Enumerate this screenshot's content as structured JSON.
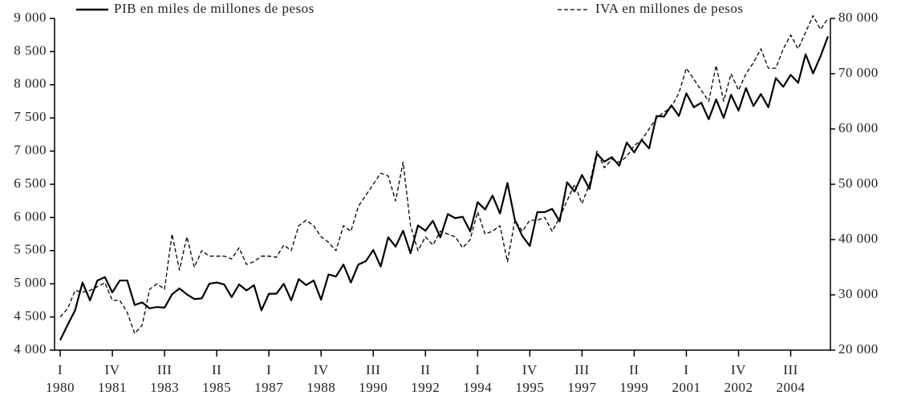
{
  "chart_data": {
    "type": "line",
    "categories": [
      [
        "I",
        "1980"
      ],
      null,
      null,
      null,
      null,
      null,
      null,
      [
        "IV",
        "1981"
      ],
      null,
      null,
      null,
      null,
      null,
      null,
      [
        "III",
        "1983"
      ],
      null,
      null,
      null,
      null,
      null,
      null,
      [
        "II",
        "1985"
      ],
      null,
      null,
      null,
      null,
      null,
      null,
      [
        "I",
        "1987"
      ],
      null,
      null,
      null,
      null,
      null,
      null,
      [
        "IV",
        "1988"
      ],
      null,
      null,
      null,
      null,
      null,
      null,
      [
        "III",
        "1990"
      ],
      null,
      null,
      null,
      null,
      null,
      null,
      [
        "II",
        "1992"
      ],
      null,
      null,
      null,
      null,
      null,
      null,
      [
        "I",
        "1994"
      ],
      null,
      null,
      null,
      null,
      null,
      null,
      [
        "IV",
        "1995"
      ],
      null,
      null,
      null,
      null,
      null,
      null,
      [
        "III",
        "1997"
      ],
      null,
      null,
      null,
      null,
      null,
      null,
      [
        "II",
        "1999"
      ],
      null,
      null,
      null,
      null,
      null,
      null,
      [
        "I",
        "2001"
      ],
      null,
      null,
      null,
      null,
      null,
      null,
      [
        "IV",
        "2002"
      ],
      null,
      null,
      null,
      null,
      null,
      null,
      [
        "III",
        "2004"
      ],
      null,
      null,
      null,
      null,
      null
    ],
    "series": [
      {
        "name": "PIB en miles de millones de pesos",
        "color": "#000000",
        "line_style": "solid",
        "axis": "y",
        "values": [
          4150,
          4380,
          4600,
          5020,
          4750,
          5050,
          5100,
          4870,
          5050,
          5050,
          4680,
          4720,
          4630,
          4650,
          4640,
          4840,
          4930,
          4840,
          4770,
          4780,
          5000,
          5020,
          4990,
          4800,
          4990,
          4900,
          4980,
          4600,
          4850,
          4850,
          5000,
          4750,
          5070,
          4980,
          5050,
          4760,
          5140,
          5110,
          5290,
          5020,
          5290,
          5340,
          5510,
          5260,
          5700,
          5560,
          5800,
          5460,
          5880,
          5800,
          5950,
          5700,
          6050,
          5990,
          6010,
          5790,
          6230,
          6120,
          6330,
          6060,
          6520,
          5960,
          5720,
          5570,
          6080,
          6080,
          6130,
          5940,
          6530,
          6390,
          6640,
          6430,
          6960,
          6840,
          6910,
          6780,
          7130,
          6980,
          7170,
          7040,
          7530,
          7520,
          7690,
          7530,
          7870,
          7660,
          7730,
          7480,
          7780,
          7500,
          7850,
          7610,
          7950,
          7680,
          7860,
          7660,
          8100,
          7970,
          8150,
          8030,
          8460,
          8170,
          8430,
          8730
        ]
      },
      {
        "name": "IVA en millones de pesos",
        "color": "#000000",
        "line_style": "dashed",
        "axis": "y2",
        "values": [
          26000,
          27500,
          30800,
          30500,
          30800,
          31500,
          32200,
          29000,
          29000,
          26800,
          23000,
          24500,
          31000,
          32000,
          31000,
          41000,
          34500,
          40500,
          35000,
          38000,
          37000,
          37000,
          37000,
          36500,
          38500,
          35500,
          36000,
          37000,
          37000,
          36800,
          39000,
          38000,
          42500,
          43500,
          42500,
          40500,
          39500,
          38000,
          42500,
          41500,
          46000,
          48000,
          50000,
          52000,
          51500,
          47000,
          54000,
          42500,
          38000,
          40500,
          39000,
          41500,
          41000,
          40500,
          38500,
          40000,
          45000,
          41000,
          41500,
          42500,
          36000,
          43500,
          41500,
          43500,
          43500,
          44000,
          41500,
          44000,
          47000,
          50000,
          46500,
          50000,
          56000,
          53000,
          54500,
          54000,
          55000,
          57000,
          58000,
          60000,
          62000,
          63000,
          64000,
          66500,
          71000,
          69000,
          67000,
          65000,
          71500,
          65000,
          70000,
          67000,
          70000,
          72000,
          74500,
          71000,
          71000,
          74500,
          77000,
          74500,
          77500,
          80500,
          78000,
          80000
        ]
      }
    ],
    "ylim": [
      4000,
      9000
    ],
    "yticks": [
      {
        "value": 4000,
        "label": "4 000"
      },
      {
        "value": 4500,
        "label": "4 500"
      },
      {
        "value": 5000,
        "label": "5 000"
      },
      {
        "value": 5500,
        "label": "5 500"
      },
      {
        "value": 6000,
        "label": "6 000"
      },
      {
        "value": 6500,
        "label": "6 500"
      },
      {
        "value": 7000,
        "label": "7 000"
      },
      {
        "value": 7500,
        "label": "7 500"
      },
      {
        "value": 8000,
        "label": "8 000"
      },
      {
        "value": 8500,
        "label": "8 500"
      },
      {
        "value": 9000,
        "label": "9 000"
      }
    ],
    "y2lim": [
      20000,
      80000
    ],
    "y2ticks": [
      {
        "value": 20000,
        "label": "20 000"
      },
      {
        "value": 30000,
        "label": "30 000"
      },
      {
        "value": 40000,
        "label": "40 000"
      },
      {
        "value": 50000,
        "label": "50 000"
      },
      {
        "value": 60000,
        "label": "60 000"
      },
      {
        "value": 70000,
        "label": "70 000"
      },
      {
        "value": 80000,
        "label": "80 000"
      }
    ],
    "grid": false,
    "legend": "top"
  }
}
